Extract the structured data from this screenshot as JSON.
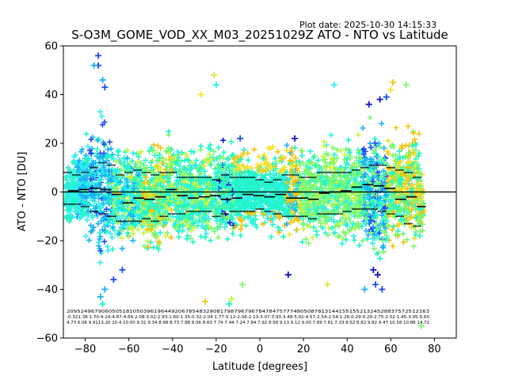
{
  "plot_date": "Plot date: 2025-10-30 14:15:33",
  "chart_data": {
    "type": "scatter",
    "title": "S-O3M_GOME_VOD_XX_M03_20251029Z ATO - NTO vs Latitude",
    "xlabel": "Latitude [degrees]",
    "ylabel": "ATO - NTO [DU]",
    "xlim": [
      -90,
      90
    ],
    "ylim": [
      -60,
      60
    ],
    "xticks": [
      -80,
      -60,
      -40,
      -20,
      0,
      20,
      40,
      60,
      80
    ],
    "yticks": [
      -60,
      -40,
      -20,
      0,
      20,
      40,
      60
    ],
    "grid": false,
    "reference_line_y": 0,
    "colors": {
      "teal": "#22f5c8",
      "cyan": "#2cf0ee",
      "sky": "#16b2f6",
      "blue": "#1f4bf2",
      "navy": "#1010d8",
      "lime": "#c8f53c",
      "yellow": "#f5e12a",
      "orange": "#f8c20a",
      "green": "#7cf86e"
    },
    "envelope": [
      {
        "x": -90,
        "upper": 12,
        "lower": -14
      },
      {
        "x": -85,
        "upper": 18,
        "lower": -18
      },
      {
        "x": -80,
        "upper": 25,
        "lower": -22
      },
      {
        "x": -76,
        "upper": 35,
        "lower": -28
      },
      {
        "x": -73,
        "upper": 45,
        "lower": -40
      },
      {
        "x": -70,
        "upper": 32,
        "lower": -35
      },
      {
        "x": -65,
        "upper": 25,
        "lower": -30
      },
      {
        "x": -60,
        "upper": 22,
        "lower": -28
      },
      {
        "x": -55,
        "upper": 22,
        "lower": -26
      },
      {
        "x": -50,
        "upper": 25,
        "lower": -30
      },
      {
        "x": -45,
        "upper": 25,
        "lower": -28
      },
      {
        "x": -40,
        "upper": 28,
        "lower": -26
      },
      {
        "x": -35,
        "upper": 22,
        "lower": -24
      },
      {
        "x": -30,
        "upper": 20,
        "lower": -22
      },
      {
        "x": -25,
        "upper": 25,
        "lower": -25
      },
      {
        "x": -20,
        "upper": 28,
        "lower": -26
      },
      {
        "x": -15,
        "upper": 25,
        "lower": -24
      },
      {
        "x": -10,
        "upper": 22,
        "lower": -22
      },
      {
        "x": -5,
        "upper": 20,
        "lower": -20
      },
      {
        "x": 0,
        "upper": 20,
        "lower": -18
      },
      {
        "x": 5,
        "upper": 22,
        "lower": -20
      },
      {
        "x": 10,
        "upper": 24,
        "lower": -22
      },
      {
        "x": 15,
        "upper": 24,
        "lower": -22
      },
      {
        "x": 20,
        "upper": 22,
        "lower": -24
      },
      {
        "x": 25,
        "upper": 22,
        "lower": -25
      },
      {
        "x": 30,
        "upper": 24,
        "lower": -24
      },
      {
        "x": 35,
        "upper": 28,
        "lower": -26
      },
      {
        "x": 40,
        "upper": 28,
        "lower": -28
      },
      {
        "x": 45,
        "upper": 28,
        "lower": -26
      },
      {
        "x": 50,
        "upper": 32,
        "lower": -30
      },
      {
        "x": 55,
        "upper": 35,
        "lower": -38
      },
      {
        "x": 60,
        "upper": 30,
        "lower": -30
      },
      {
        "x": 65,
        "upper": 32,
        "lower": -28
      },
      {
        "x": 70,
        "upper": 38,
        "lower": -32
      },
      {
        "x": 73,
        "upper": 30,
        "lower": -35
      },
      {
        "x": 75,
        "upper": 10,
        "lower": -20
      }
    ],
    "outliers": [
      {
        "x": -74,
        "y": 56,
        "color": "blue"
      },
      {
        "x": -74,
        "y": 52,
        "color": "blue"
      },
      {
        "x": -76,
        "y": 52,
        "color": "sky"
      },
      {
        "x": -72,
        "y": 46,
        "color": "sky"
      },
      {
        "x": -71,
        "y": 43,
        "color": "blue"
      },
      {
        "x": -73,
        "y": -43,
        "color": "sky"
      },
      {
        "x": -72,
        "y": -46,
        "color": "teal"
      },
      {
        "x": -71,
        "y": -40,
        "color": "sky"
      },
      {
        "x": -67,
        "y": -36,
        "color": "blue"
      },
      {
        "x": -63,
        "y": -32,
        "color": "blue"
      },
      {
        "x": -21,
        "y": 48,
        "color": "lime"
      },
      {
        "x": -20,
        "y": 44,
        "color": "cyan"
      },
      {
        "x": -27,
        "y": 40,
        "color": "yellow"
      },
      {
        "x": -25,
        "y": -45,
        "color": "orange"
      },
      {
        "x": -14,
        "y": -46,
        "color": "teal"
      },
      {
        "x": -9,
        "y": 22,
        "color": "blue"
      },
      {
        "x": -13,
        "y": -44,
        "color": "lime"
      },
      {
        "x": -8,
        "y": -38,
        "color": "green"
      },
      {
        "x": 13,
        "y": -34,
        "color": "navy"
      },
      {
        "x": 16,
        "y": 22,
        "color": "navy"
      },
      {
        "x": 34,
        "y": 44,
        "color": "cyan"
      },
      {
        "x": 31,
        "y": -38,
        "color": "lime"
      },
      {
        "x": 50,
        "y": 36,
        "color": "navy"
      },
      {
        "x": 55,
        "y": 38,
        "color": "navy"
      },
      {
        "x": 58,
        "y": 39,
        "color": "blue"
      },
      {
        "x": 52,
        "y": -32,
        "color": "navy"
      },
      {
        "x": 54,
        "y": -34,
        "color": "navy"
      },
      {
        "x": 56,
        "y": -40,
        "color": "blue"
      },
      {
        "x": 53,
        "y": -38,
        "color": "blue"
      },
      {
        "x": 61,
        "y": 45,
        "color": "orange"
      },
      {
        "x": 60,
        "y": 42,
        "color": "yellow"
      },
      {
        "x": 67,
        "y": 44,
        "color": "green"
      },
      {
        "x": 74,
        "y": -55,
        "color": "green"
      },
      {
        "x": 48,
        "y": -40,
        "color": "sky"
      }
    ],
    "mean_segments": [
      {
        "x0": -88,
        "x1": -83,
        "y": 0.5
      },
      {
        "x0": -83,
        "x1": -78,
        "y": 1
      },
      {
        "x0": -78,
        "x1": -73,
        "y": 1.5
      },
      {
        "x0": -73,
        "x1": -68,
        "y": 1
      },
      {
        "x0": -68,
        "x1": -63,
        "y": -1
      },
      {
        "x0": -63,
        "x1": -58,
        "y": -4.5
      },
      {
        "x0": -58,
        "x1": -53,
        "y": -2.5
      },
      {
        "x0": -53,
        "x1": -48,
        "y": -3
      },
      {
        "x0": -48,
        "x1": -43,
        "y": -2
      },
      {
        "x0": -43,
        "x1": -38,
        "y": 1
      },
      {
        "x0": -38,
        "x1": -33,
        "y": -1.5
      },
      {
        "x0": -33,
        "x1": -28,
        "y": -2.5
      },
      {
        "x0": -28,
        "x1": -23,
        "y": -2
      },
      {
        "x0": -23,
        "x1": -18,
        "y": -1.5
      },
      {
        "x0": -18,
        "x1": -13,
        "y": -3
      },
      {
        "x0": -13,
        "x1": -8,
        "y": -2.5
      },
      {
        "x0": -8,
        "x1": -3,
        "y": -1
      },
      {
        "x0": -3,
        "x1": 2,
        "y": -1.5
      },
      {
        "x0": 2,
        "x1": 7,
        "y": -2
      },
      {
        "x0": 7,
        "x1": 12,
        "y": -1
      },
      {
        "x0": 12,
        "x1": 17,
        "y": -2.5
      },
      {
        "x0": 17,
        "x1": 22,
        "y": -2.5
      },
      {
        "x0": 22,
        "x1": 27,
        "y": -3
      },
      {
        "x0": 27,
        "x1": 32,
        "y": -0.5
      },
      {
        "x0": 32,
        "x1": 37,
        "y": 0
      },
      {
        "x0": 37,
        "x1": 42,
        "y": 0.5
      },
      {
        "x0": 42,
        "x1": 47,
        "y": 2
      },
      {
        "x0": 47,
        "x1": 52,
        "y": 3
      },
      {
        "x0": 52,
        "x1": 57,
        "y": 2.5
      },
      {
        "x0": 57,
        "x1": 62,
        "y": 1.5
      },
      {
        "x0": 62,
        "x1": 67,
        "y": -3
      },
      {
        "x0": 67,
        "x1": 72,
        "y": -2
      },
      {
        "x0": 72,
        "x1": 76,
        "y": -6
      }
    ],
    "upper_sigma": [
      {
        "x": -88,
        "y": 8
      },
      {
        "x": -84,
        "y": 7
      },
      {
        "x": -80,
        "y": 8
      },
      {
        "x": -76,
        "y": 10
      },
      {
        "x": -72,
        "y": 12
      },
      {
        "x": -68,
        "y": 11
      },
      {
        "x": -64,
        "y": 7
      },
      {
        "x": -60,
        "y": 8
      },
      {
        "x": -56,
        "y": 9
      },
      {
        "x": -52,
        "y": 8
      },
      {
        "x": -48,
        "y": 7
      },
      {
        "x": -44,
        "y": 8
      },
      {
        "x": -40,
        "y": 8
      },
      {
        "x": -36,
        "y": 6
      },
      {
        "x": -32,
        "y": 6
      },
      {
        "x": -28,
        "y": 6
      },
      {
        "x": -24,
        "y": 6
      },
      {
        "x": -20,
        "y": 5
      },
      {
        "x": -16,
        "y": 7
      },
      {
        "x": -12,
        "y": 6
      },
      {
        "x": -8,
        "y": 6
      },
      {
        "x": -4,
        "y": 6
      },
      {
        "x": 0,
        "y": 5
      },
      {
        "x": 4,
        "y": 4
      },
      {
        "x": 8,
        "y": 5
      },
      {
        "x": 12,
        "y": 7
      },
      {
        "x": 16,
        "y": 7
      },
      {
        "x": 20,
        "y": 6
      },
      {
        "x": 24,
        "y": 6
      },
      {
        "x": 28,
        "y": 8
      },
      {
        "x": 32,
        "y": 8
      },
      {
        "x": 36,
        "y": 8
      },
      {
        "x": 40,
        "y": 8
      },
      {
        "x": 44,
        "y": 9
      },
      {
        "x": 48,
        "y": 10
      },
      {
        "x": 52,
        "y": 11
      },
      {
        "x": 56,
        "y": 11
      },
      {
        "x": 60,
        "y": 10
      },
      {
        "x": 64,
        "y": 9
      },
      {
        "x": 68,
        "y": 8
      },
      {
        "x": 72,
        "y": 6
      }
    ],
    "lower_sigma": [
      {
        "x": -88,
        "y": -5
      },
      {
        "x": -84,
        "y": -5
      },
      {
        "x": -80,
        "y": -6
      },
      {
        "x": -76,
        "y": -8
      },
      {
        "x": -72,
        "y": -9
      },
      {
        "x": -68,
        "y": -10
      },
      {
        "x": -64,
        "y": -12
      },
      {
        "x": -60,
        "y": -12
      },
      {
        "x": -56,
        "y": -12
      },
      {
        "x": -52,
        "y": -11
      },
      {
        "x": -48,
        "y": -12
      },
      {
        "x": -44,
        "y": -10
      },
      {
        "x": -40,
        "y": -9
      },
      {
        "x": -36,
        "y": -9
      },
      {
        "x": -32,
        "y": -8
      },
      {
        "x": -28,
        "y": -8
      },
      {
        "x": -24,
        "y": -8
      },
      {
        "x": -20,
        "y": -10
      },
      {
        "x": -16,
        "y": -9
      },
      {
        "x": -12,
        "y": -8
      },
      {
        "x": -8,
        "y": -8
      },
      {
        "x": -4,
        "y": -8
      },
      {
        "x": 0,
        "y": -7
      },
      {
        "x": 4,
        "y": -8
      },
      {
        "x": 8,
        "y": -9
      },
      {
        "x": 12,
        "y": -10
      },
      {
        "x": 16,
        "y": -10
      },
      {
        "x": 20,
        "y": -10
      },
      {
        "x": 24,
        "y": -11
      },
      {
        "x": 28,
        "y": -9
      },
      {
        "x": 32,
        "y": -9
      },
      {
        "x": 36,
        "y": -9
      },
      {
        "x": 40,
        "y": -8
      },
      {
        "x": 44,
        "y": -7
      },
      {
        "x": 48,
        "y": -7
      },
      {
        "x": 52,
        "y": -7
      },
      {
        "x": 56,
        "y": -8
      },
      {
        "x": 60,
        "y": -9
      },
      {
        "x": 64,
        "y": -10
      },
      {
        "x": 68,
        "y": -13
      },
      {
        "x": 72,
        "y": -14
      }
    ],
    "stats_rows": [
      "20952496790605051810503961964492067854832908179879679678478475777480508781314415515521324528837572512163",
      "-0.321.38 1.70-4.14-4.87-4.64-2.08-3.02-2.93-1.60-1.35-0.32-2.04 1.77-5.12-2.06-2.13-3.07-3.93-3.48-5.02-4.57-2.54-2.54-1.26-0.29-0.29-2.75-2.52-1.45-3.05-5.60",
      "4.73 6.06 9.9113.20 10.4 10.00 9.31 9.34 8.98 8.73 7.88 8.56 8.63 7.74 7.44 7.24 7.84 7.92 8.58 9.13 9.12 9.00 7.89 7.81 7.33 8.62 8.82 9.82 9.47 10.58 10.88 14.72"
    ]
  }
}
